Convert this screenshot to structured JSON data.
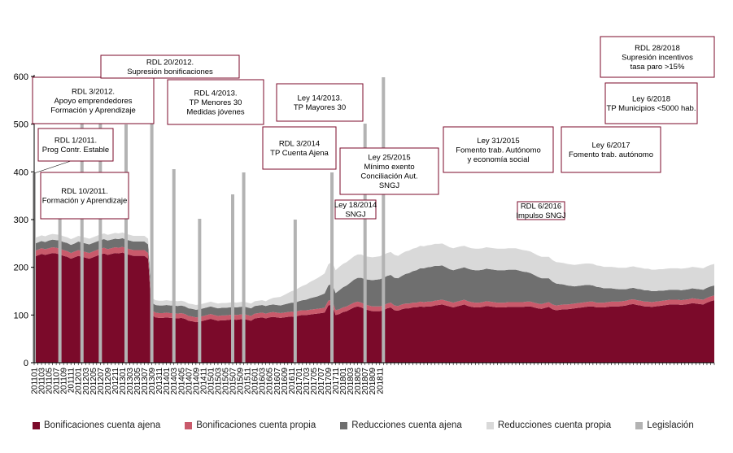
{
  "chart_data": {
    "type": "area",
    "ylim": [
      0,
      600
    ],
    "yticks": [
      0,
      100,
      200,
      300,
      400,
      500,
      600
    ],
    "x_start": "201101",
    "x_end": "201812",
    "x_tick_labels": [
      "201101",
      "201103",
      "201105",
      "201107",
      "201109",
      "201111",
      "201201",
      "201203",
      "201205",
      "201207",
      "201209",
      "201211",
      "201301",
      "201303",
      "201305",
      "201307",
      "201309",
      "201311",
      "201401",
      "201403",
      "201405",
      "201407",
      "201409",
      "201411",
      "201501",
      "201503",
      "201505",
      "201507",
      "201509",
      "201511",
      "201601",
      "201603",
      "201605",
      "201607",
      "201609",
      "201611",
      "201701",
      "201703",
      "201705",
      "201707",
      "201709",
      "201711",
      "201801",
      "201803",
      "201805",
      "201807",
      "201809",
      "201811"
    ],
    "colors": {
      "bonif_ajena": "#7b0a2a",
      "bonif_propia": "#c95a6b",
      "reduc_ajena": "#6f6f6f",
      "reduc_propia": "#d9d9d9",
      "legislacion": "#b3b3b3"
    },
    "series": [
      {
        "name": "Bonificaciones cuenta ajena",
        "values": [
          222,
          225,
          228,
          226,
          228,
          230,
          229,
          227,
          224,
          222,
          218,
          221,
          224,
          222,
          220,
          218,
          221,
          224,
          227,
          229,
          226,
          228,
          230,
          229,
          231,
          228,
          226,
          224,
          224,
          224,
          224,
          218,
          100,
          95,
          94,
          94,
          95,
          94,
          94,
          93,
          94,
          92,
          88,
          87,
          85,
          86,
          88,
          90,
          92,
          90,
          88,
          89,
          89,
          90,
          91,
          90,
          91,
          92,
          90,
          88,
          93,
          94,
          95,
          93,
          95,
          96,
          95,
          94,
          95,
          96,
          97,
          96,
          99,
          100,
          100,
          101,
          102,
          103,
          104,
          105,
          120,
          122,
          100,
          102,
          106,
          108,
          112,
          116,
          118,
          116,
          112,
          110,
          108,
          108,
          108,
          110,
          114,
          116,
          110,
          109,
          112,
          114,
          114,
          116,
          116,
          118,
          117,
          118,
          118,
          120,
          121,
          122,
          120,
          118,
          116,
          118,
          120,
          122,
          119,
          117,
          116,
          116,
          117,
          119,
          118,
          117,
          116,
          116,
          116,
          117,
          117,
          117,
          117,
          117,
          118,
          118,
          116,
          114,
          113,
          115,
          117,
          112,
          110,
          111,
          112,
          112,
          113,
          114,
          115,
          116,
          117,
          118,
          118,
          116,
          116,
          116,
          117,
          118,
          118,
          118,
          119,
          120,
          122,
          123,
          121,
          120,
          118,
          118,
          117,
          118,
          119,
          120,
          121,
          122,
          122,
          122,
          121,
          122,
          123,
          125,
          124,
          123,
          122,
          126,
          129,
          131
        ]
      },
      {
        "name": "Bonificaciones cuenta propia",
        "values": [
          12,
          12,
          12,
          12,
          12,
          12,
          12,
          12,
          12,
          12,
          12,
          12,
          12,
          12,
          12,
          12,
          12,
          12,
          12,
          12,
          12,
          12,
          12,
          12,
          12,
          12,
          12,
          12,
          12,
          12,
          12,
          12,
          10,
          10,
          10,
          10,
          10,
          10,
          10,
          10,
          10,
          10,
          10,
          10,
          10,
          10,
          10,
          10,
          10,
          10,
          10,
          10,
          10,
          10,
          10,
          10,
          10,
          10,
          10,
          10,
          10,
          10,
          10,
          10,
          10,
          10,
          10,
          10,
          10,
          10,
          10,
          10,
          10,
          10,
          10,
          10,
          10,
          10,
          10,
          10,
          10,
          10,
          10,
          10,
          10,
          10,
          10,
          10,
          10,
          10,
          10,
          10,
          10,
          10,
          10,
          10,
          10,
          10,
          10,
          10,
          10,
          10,
          10,
          10,
          10,
          10,
          10,
          10,
          10,
          10,
          10,
          10,
          10,
          10,
          10,
          10,
          10,
          10,
          10,
          10,
          10,
          10,
          10,
          10,
          10,
          10,
          10,
          10,
          10,
          10,
          10,
          10,
          10,
          10,
          10,
          10,
          10,
          10,
          10,
          10,
          10,
          10,
          10,
          10,
          10,
          10,
          10,
          10,
          10,
          10,
          10,
          10,
          10,
          10,
          10,
          10,
          10,
          10,
          10,
          10,
          10,
          10,
          10,
          10,
          10,
          10,
          10,
          10,
          10,
          10,
          10,
          10,
          10,
          10,
          10,
          10,
          10,
          10,
          10,
          10,
          10,
          10,
          10,
          10,
          10,
          10,
          10,
          10,
          10,
          10,
          10
        ]
      },
      {
        "name": "Reducciones cuenta ajena",
        "values": [
          15,
          15,
          15,
          15,
          16,
          16,
          16,
          17,
          17,
          17,
          17,
          17,
          18,
          18,
          18,
          18,
          18,
          18,
          18,
          18,
          18,
          18,
          18,
          18,
          18,
          18,
          18,
          18,
          18,
          18,
          18,
          18,
          16,
          16,
          16,
          16,
          16,
          16,
          16,
          16,
          16,
          16,
          16,
          16,
          16,
          16,
          16,
          16,
          16,
          16,
          16,
          16,
          16,
          16,
          16,
          16,
          16,
          16,
          16,
          16,
          16,
          16,
          16,
          16,
          16,
          16,
          16,
          16,
          17,
          18,
          19,
          20,
          20,
          21,
          22,
          24,
          25,
          26,
          28,
          30,
          32,
          34,
          36,
          40,
          42,
          44,
          46,
          48,
          50,
          52,
          53,
          54,
          55,
          56,
          57,
          58,
          58,
          58,
          58,
          58,
          60,
          62,
          64,
          66,
          68,
          70,
          71,
          72,
          73,
          73,
          72,
          72,
          70,
          68,
          68,
          68,
          68,
          68,
          68,
          68,
          68,
          68,
          68,
          68,
          68,
          68,
          68,
          68,
          68,
          68,
          68,
          68,
          66,
          64,
          62,
          60,
          58,
          56,
          54,
          52,
          50,
          48,
          46,
          44,
          42,
          40,
          38,
          36,
          36,
          36,
          36,
          35,
          34,
          33,
          32,
          30,
          29,
          28,
          27,
          26,
          25,
          24,
          24,
          24,
          24,
          24,
          24,
          24,
          23,
          22,
          22,
          21,
          21,
          21,
          21,
          21,
          21,
          21,
          21,
          21,
          21,
          21,
          21,
          21,
          21,
          21,
          21,
          21,
          21,
          21,
          21
        ]
      },
      {
        "name": "Reducciones cuenta propia",
        "values": [
          12,
          12,
          12,
          12,
          12,
          12,
          12,
          12,
          12,
          12,
          12,
          12,
          12,
          12,
          12,
          12,
          12,
          12,
          12,
          12,
          12,
          12,
          12,
          12,
          12,
          12,
          12,
          12,
          12,
          12,
          12,
          12,
          10,
          10,
          10,
          10,
          10,
          10,
          10,
          10,
          10,
          10,
          10,
          10,
          10,
          10,
          10,
          10,
          10,
          10,
          10,
          10,
          10,
          10,
          10,
          10,
          10,
          10,
          10,
          10,
          10,
          10,
          10,
          10,
          12,
          14,
          16,
          18,
          20,
          22,
          24,
          26,
          28,
          30,
          32,
          34,
          36,
          38,
          40,
          42,
          44,
          46,
          48,
          49,
          49,
          49,
          49,
          49,
          49,
          49,
          48,
          48,
          48,
          48,
          48,
          48,
          48,
          48,
          48,
          47,
          47,
          47,
          47,
          47,
          47,
          47,
          46,
          46,
          46,
          46,
          46,
          46,
          46,
          46,
          46,
          46,
          46,
          45,
          45,
          45,
          45,
          45,
          45,
          45,
          45,
          45,
          45,
          45,
          45,
          45,
          45,
          45,
          45,
          45,
          45,
          45,
          45,
          45,
          45,
          45,
          45,
          45,
          45,
          45,
          45,
          45,
          45,
          45,
          45,
          45,
          45,
          45,
          45,
          45,
          45,
          45,
          45,
          45,
          45,
          45,
          45,
          45,
          45,
          45,
          45,
          45,
          45,
          45,
          45,
          45,
          45,
          45,
          45,
          45,
          45,
          45,
          45,
          45,
          45,
          45,
          45,
          45,
          45,
          45,
          45,
          45,
          45,
          45,
          45,
          45
        ]
      },
      {
        "name": "Legislación"
      }
    ],
    "legislation": [
      {
        "date": "201101",
        "lines": [
          "RDL 1/2011.",
          "Prog Contr. Estable"
        ]
      },
      {
        "date": "201108",
        "lines": [
          "RDL 10/2011.",
          "Formación y Aprendizaje"
        ]
      },
      {
        "date": "201202",
        "lines": [
          "RDL 3/2012.",
          "Apoyo emprendedores",
          "Formación y Aprendizaje"
        ]
      },
      {
        "date": "201207",
        "lines": [
          "RDL 20/2012.",
          "Supresión bonificaciones"
        ]
      },
      {
        "date": "201302",
        "lines": [
          "RDL 4/2013.",
          "TP Menores 30",
          "Medidas jóvenes"
        ]
      },
      {
        "date": "201309",
        "lines": [
          "Ley 14/2013.",
          "TP Mayores 30"
        ]
      },
      {
        "date": "201403",
        "lines": [
          "RDL 3/2014",
          "TP Cuenta Ajena"
        ]
      },
      {
        "date": "201410",
        "lines": [
          "Ley 18/2014",
          "SNGJ"
        ]
      },
      {
        "date": "201507",
        "lines": [
          "Ley 25/2015",
          "Mínimo exento",
          "Conciliación Aut.",
          "SNGJ"
        ]
      },
      {
        "date": "201510",
        "lines": [
          "Ley 31/2015",
          "Fomento trab. Autónomo",
          "y economía social"
        ]
      },
      {
        "date": "201612",
        "lines": [
          "RDL 6/2016",
          "Impulso SNGJ"
        ]
      },
      {
        "date": "201710",
        "lines": [
          "Ley 6/2017",
          "Fomento trab. autónomo"
        ]
      },
      {
        "date": "201807",
        "lines": [
          "Ley 6/2018",
          "TP Municipios <5000 hab."
        ]
      },
      {
        "date": "201812",
        "lines": [
          "RDL 28/2018",
          "Supresión incentivos",
          "tasa paro >15%"
        ]
      }
    ]
  }
}
